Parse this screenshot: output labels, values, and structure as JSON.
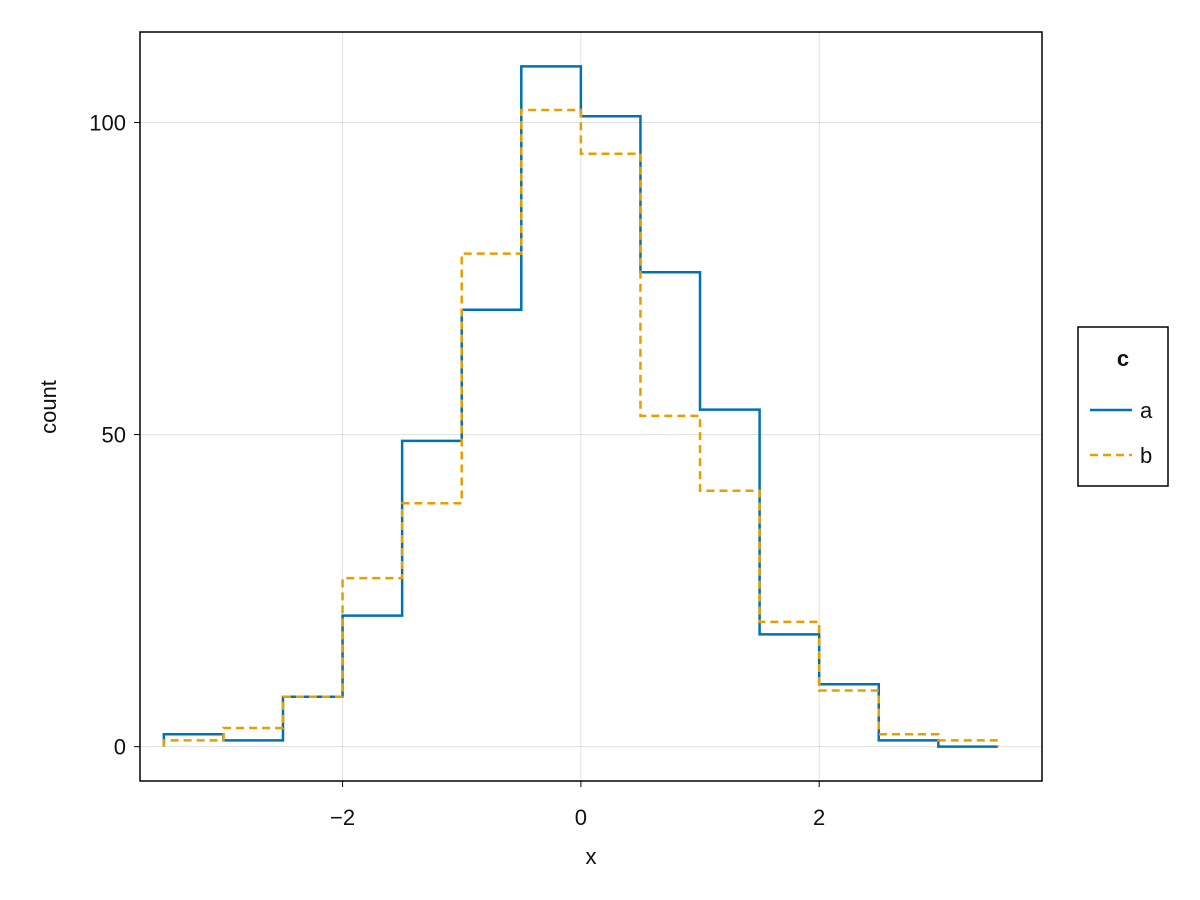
{
  "chart_data": {
    "type": "line",
    "subtype": "step-histogram",
    "title": "",
    "xlabel": "x",
    "ylabel": "count",
    "xlim": [
      -3.7,
      3.87
    ],
    "ylim": [
      -5.5,
      114.5
    ],
    "xticks": [
      -2,
      0,
      2
    ],
    "xtick_labels": [
      "−2",
      "0",
      "2"
    ],
    "yticks": [
      0,
      50,
      100
    ],
    "ytick_labels": [
      "0",
      "50",
      "100"
    ],
    "grid": true,
    "bin_edges": [
      -3.5,
      -3.0,
      -2.5,
      -2.0,
      -1.5,
      -1.0,
      -0.5,
      0.0,
      0.5,
      1.0,
      1.5,
      2.0,
      2.5,
      3.0,
      3.5
    ],
    "series": [
      {
        "name": "a",
        "color": "#0072B2",
        "style": "solid",
        "values": [
          2,
          1,
          8,
          21,
          49,
          70,
          109,
          101,
          76,
          54,
          18,
          10,
          1,
          0
        ]
      },
      {
        "name": "b",
        "color": "#E69F00",
        "style": "dashed",
        "values": [
          1,
          3,
          8,
          27,
          39,
          79,
          102,
          95,
          53,
          41,
          20,
          9,
          2,
          1
        ]
      }
    ],
    "legend": {
      "title": "c",
      "position": "right"
    }
  }
}
